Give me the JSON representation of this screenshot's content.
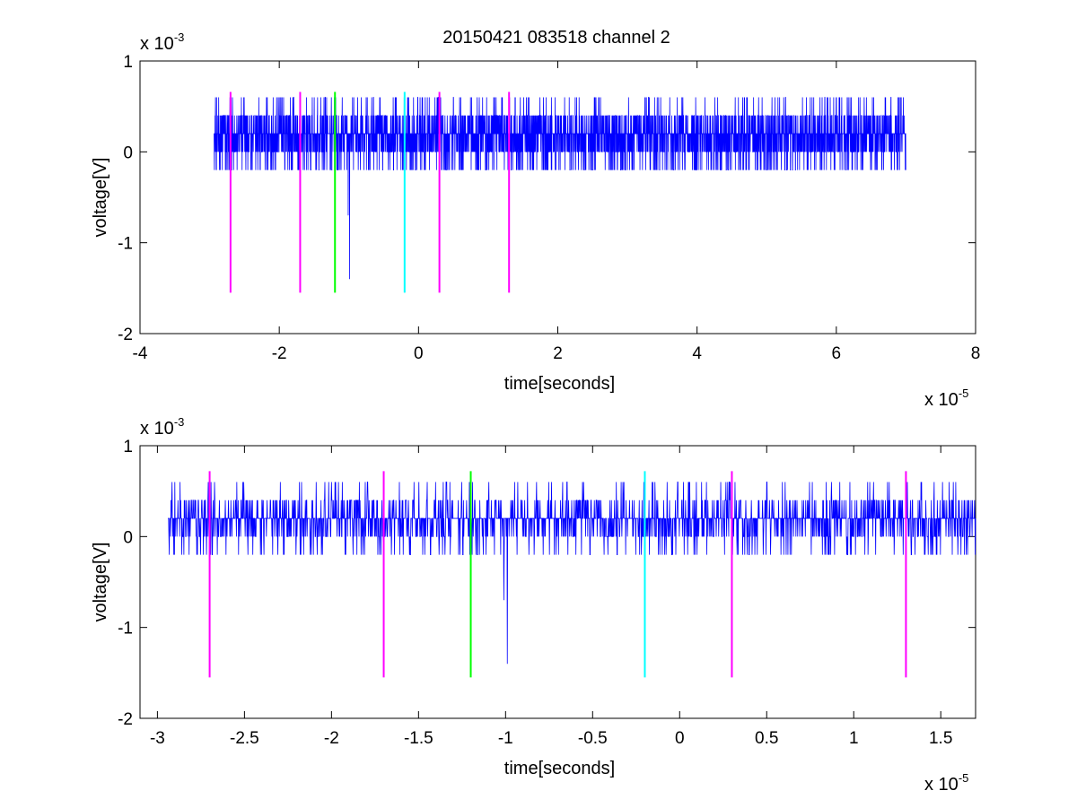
{
  "figure": {
    "title": "20150421 083518 channel 2"
  },
  "chart_data": [
    {
      "id": "top",
      "type": "line",
      "title": "20150421 083518 channel 2",
      "xlabel": "time[seconds]",
      "ylabel": "voltage[V]",
      "x_exponent_label": "x 10",
      "x_exponent": "-5",
      "y_exponent_label": "x 10",
      "y_exponent": "-3",
      "xlim": [
        -4e-05,
        8e-05
      ],
      "ylim": [
        -0.002,
        0.001
      ],
      "x_ticks": [
        -4e-05,
        -2e-05,
        0,
        2e-05,
        4e-05,
        6e-05,
        8e-05
      ],
      "x_tick_labels": [
        "-4",
        "-2",
        "0",
        "2",
        "4",
        "6",
        "8"
      ],
      "y_ticks": [
        -0.002,
        -0.001,
        0,
        0.001
      ],
      "y_tick_labels": [
        "-2",
        "-1",
        "0",
        "1"
      ],
      "grid": false,
      "signal": {
        "color": "#0000ff",
        "x_start": -2.94e-05,
        "x_end": 7e-05,
        "baseline": 0.0002,
        "spikes": [
          {
            "x": -9.9e-06,
            "y": -0.0014
          },
          {
            "x": -1.01e-05,
            "y": -0.0007
          }
        ]
      },
      "markers": [
        {
          "x": -2.7e-05,
          "color": "#ff00ff",
          "y_range": [
            -0.00155,
            0.00066
          ]
        },
        {
          "x": -1.7e-05,
          "color": "#ff00ff",
          "y_range": [
            -0.00155,
            0.00066
          ]
        },
        {
          "x": -1.2e-05,
          "color": "#00ff00",
          "y_range": [
            -0.00155,
            0.00066
          ]
        },
        {
          "x": -2e-06,
          "color": "#00ffff",
          "y_range": [
            -0.00155,
            0.00066
          ]
        },
        {
          "x": 3e-06,
          "color": "#ff00ff",
          "y_range": [
            -0.00155,
            0.00066
          ]
        },
        {
          "x": 1.3e-05,
          "color": "#ff00ff",
          "y_range": [
            -0.00155,
            0.00066
          ]
        }
      ]
    },
    {
      "id": "bottom",
      "type": "line",
      "xlabel": "time[seconds]",
      "ylabel": "voltage[V]",
      "x_exponent_label": "x 10",
      "x_exponent": "-5",
      "y_exponent_label": "x 10",
      "y_exponent": "-3",
      "xlim": [
        -3.1e-05,
        1.7e-05
      ],
      "ylim": [
        -0.002,
        0.001
      ],
      "x_ticks": [
        -3e-05,
        -2.5e-05,
        -2e-05,
        -1.5e-05,
        -1e-05,
        -5e-06,
        0,
        5e-06,
        1e-05,
        1.5e-05
      ],
      "x_tick_labels": [
        "-3",
        "-2.5",
        "-2",
        "-1.5",
        "-1",
        "-0.5",
        "0",
        "0.5",
        "1",
        "1.5"
      ],
      "y_ticks": [
        -0.002,
        -0.001,
        0,
        0.001
      ],
      "y_tick_labels": [
        "-2",
        "-1",
        "0",
        "1"
      ],
      "grid": false,
      "signal": {
        "color": "#0000ff",
        "x_start": -2.94e-05,
        "x_end": 1.7e-05,
        "baseline": 0.0002,
        "spikes": [
          {
            "x": -9.9e-06,
            "y": -0.0014
          },
          {
            "x": -1.01e-05,
            "y": -0.0007
          }
        ]
      },
      "markers": [
        {
          "x": -2.7e-05,
          "color": "#ff00ff",
          "y_range": [
            -0.00155,
            0.00072
          ]
        },
        {
          "x": -1.7e-05,
          "color": "#ff00ff",
          "y_range": [
            -0.00155,
            0.00072
          ]
        },
        {
          "x": -1.2e-05,
          "color": "#00ff00",
          "y_range": [
            -0.00155,
            0.00072
          ]
        },
        {
          "x": -2e-06,
          "color": "#00ffff",
          "y_range": [
            -0.00155,
            0.00072
          ]
        },
        {
          "x": 3e-06,
          "color": "#ff00ff",
          "y_range": [
            -0.00155,
            0.00072
          ]
        },
        {
          "x": 1.3e-05,
          "color": "#ff00ff",
          "y_range": [
            -0.00155,
            0.00072
          ]
        }
      ]
    }
  ]
}
